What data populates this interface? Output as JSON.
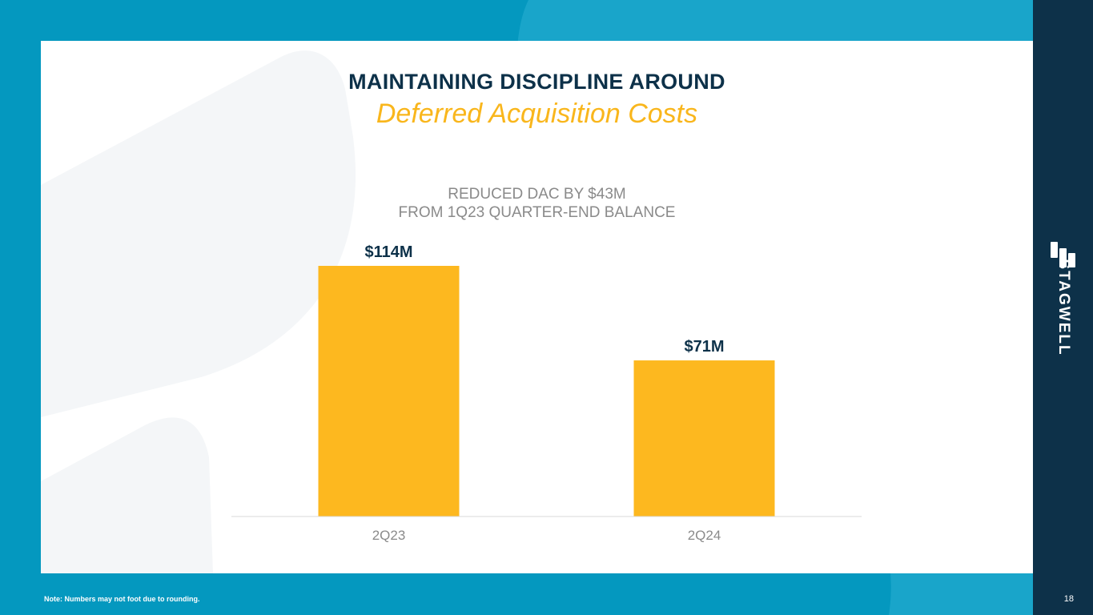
{
  "slide": {
    "title": "MAINTAINING DISCIPLINE AROUND",
    "subtitle": "Deferred Acquisition Costs",
    "footnote": "Note: Numbers may not foot due to rounding.",
    "page_number": "18"
  },
  "brand": {
    "logo_text": "STAGWELL",
    "logo_icon": "stagwell-logo-icon",
    "colors": {
      "background": "#0498bf",
      "sidebar": "#0d3149",
      "title": "#0d3149",
      "accent": "#f9b61c",
      "bar": "#fdb81f",
      "muted_text": "#8a8a8a"
    }
  },
  "chart_data": {
    "type": "bar",
    "title": "REDUCED DAC BY $43M",
    "subtitle": "FROM 1Q23 QUARTER-END BALANCE",
    "categories": [
      "2Q23",
      "2Q24"
    ],
    "values": [
      114,
      71
    ],
    "value_labels": [
      "$114M",
      "$71M"
    ],
    "xlabel": "",
    "ylabel": "",
    "ylim": [
      0,
      114
    ],
    "grid": false,
    "legend": "none",
    "unit": "$M"
  }
}
